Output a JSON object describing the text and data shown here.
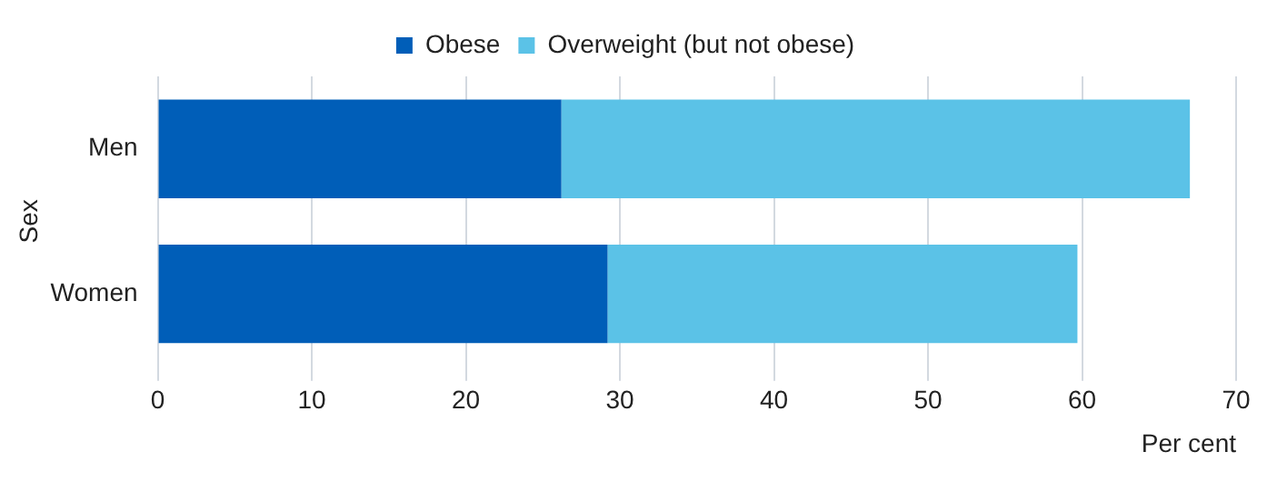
{
  "chart_data": {
    "type": "bar",
    "orientation": "horizontal",
    "stacked": true,
    "categories": [
      "Men",
      "Women"
    ],
    "series": [
      {
        "name": "Obese",
        "color": "#005eb8",
        "values": [
          26.2,
          29.2
        ]
      },
      {
        "name": "Overweight (but not obese)",
        "color": "#5bc2e7",
        "values": [
          40.8,
          30.5
        ]
      }
    ],
    "xlim": [
      0,
      70
    ],
    "xticks": [
      0,
      10,
      20,
      30,
      40,
      50,
      60,
      70
    ],
    "xlabel": "Per cent",
    "ylabel": "Sex",
    "grid": "x",
    "legend": "top"
  }
}
